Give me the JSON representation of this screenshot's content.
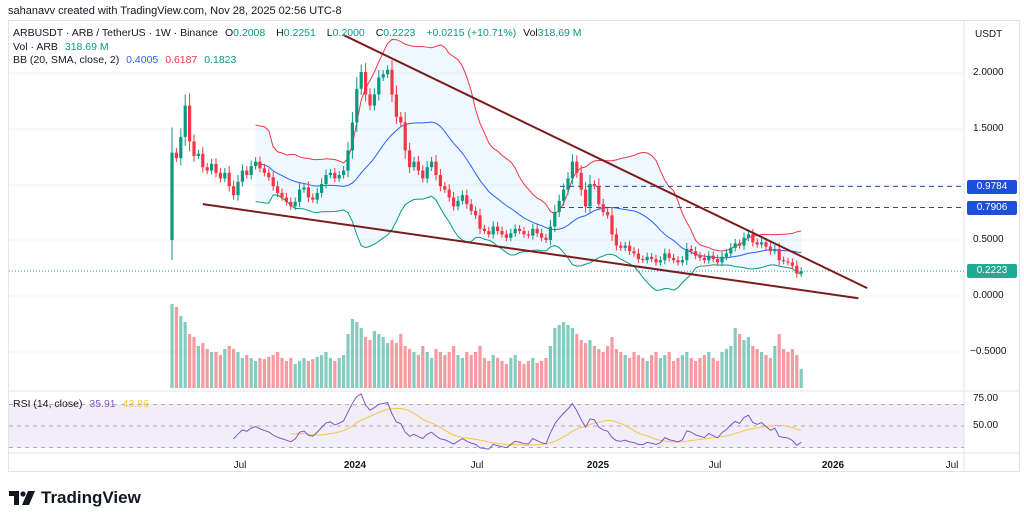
{
  "credit": "sahanavv created with TradingView.com, Nov 28, 2025 02:56 UTC-8",
  "legend": {
    "symbol": "ARBUSDT · ARB / TetherUS · 1W · Binance",
    "o_label": "O",
    "o": "0.2008",
    "h_label": "H",
    "h": "0.2251",
    "l_label": "L",
    "l": "0.2000",
    "c_label": "C",
    "c": "0.2223",
    "change": "+0.0215 (+10.71%)",
    "vol_label": "Vol",
    "vol": "318.69 M",
    "vol_title": "Vol · ARB",
    "vol_value": "318.69 M",
    "bb_title": "BB (20, SMA, close, 2)",
    "bb_basis": "0.4005",
    "bb_upper": "0.6187",
    "bb_lower": "0.1823",
    "rsi_title": "RSI (14, close)",
    "rsi_value": "35.91",
    "rsi_ma": "43.86"
  },
  "price_axis": {
    "currency": "USDT",
    "ticks": [
      "2.0000",
      "1.5000",
      "0.5000",
      "0.0000",
      "−0.5000"
    ],
    "rsi_ticks": [
      "75.00",
      "50.00"
    ]
  },
  "tags": {
    "level1": "0.9784",
    "level2": "0.7906",
    "last": "0.2223"
  },
  "time_axis": [
    "Jul",
    "2024",
    "Jul",
    "2025",
    "Jul",
    "2026",
    "Jul"
  ],
  "logo": "TradingView",
  "colors": {
    "up": "#089981",
    "down": "#f23645",
    "bb_basis": "#2962ff",
    "bb_upper": "#f23645",
    "bb_lower": "#089981",
    "trend": "#7b1c1c",
    "rsi": "#7e57c2",
    "rsi_ma": "#f7c548",
    "level": "#2a4a9e"
  },
  "chart_data": {
    "type": "candlestick",
    "symbol": "ARBUSDT",
    "interval": "1W",
    "start_week": "2023-03-20",
    "first_open": 0.5,
    "close": [
      1.28,
      1.23,
      1.42,
      1.7,
      1.38,
      1.25,
      1.27,
      1.15,
      1.12,
      1.18,
      1.1,
      1.05,
      1.1,
      0.98,
      0.9,
      1.02,
      1.12,
      1.08,
      1.16,
      1.2,
      1.14,
      1.1,
      1.06,
      0.98,
      0.92,
      0.88,
      0.84,
      0.8,
      0.84,
      0.95,
      0.97,
      0.88,
      0.86,
      0.92,
      1.0,
      1.08,
      1.1,
      1.05,
      1.08,
      1.12,
      1.3,
      1.55,
      1.85,
      2.0,
      1.8,
      1.7,
      1.8,
      1.95,
      1.98,
      2.02,
      1.8,
      1.6,
      1.55,
      1.3,
      1.15,
      1.2,
      1.12,
      1.05,
      1.15,
      1.2,
      1.08,
      0.98,
      0.95,
      0.88,
      0.8,
      0.85,
      0.9,
      0.82,
      0.76,
      0.72,
      0.6,
      0.58,
      0.55,
      0.62,
      0.58,
      0.55,
      0.52,
      0.56,
      0.6,
      0.58,
      0.55,
      0.54,
      0.6,
      0.56,
      0.52,
      0.5,
      0.62,
      0.75,
      0.85,
      0.95,
      1.05,
      1.2,
      1.1,
      0.95,
      0.8,
      1.0,
      0.98,
      0.82,
      0.75,
      0.72,
      0.55,
      0.45,
      0.43,
      0.45,
      0.4,
      0.38,
      0.33,
      0.32,
      0.35,
      0.33,
      0.3,
      0.32,
      0.38,
      0.34,
      0.32,
      0.3,
      0.32,
      0.42,
      0.4,
      0.36,
      0.34,
      0.32,
      0.36,
      0.33,
      0.3,
      0.35,
      0.38,
      0.43,
      0.47,
      0.45,
      0.52,
      0.55,
      0.48,
      0.46,
      0.48,
      0.44,
      0.4,
      0.42,
      0.32,
      0.31,
      0.3,
      0.27,
      0.2,
      0.2223
    ],
    "volume_m": [
      1400,
      1350,
      1200,
      1100,
      900,
      850,
      700,
      750,
      650,
      600,
      600,
      550,
      650,
      700,
      650,
      600,
      500,
      550,
      500,
      450,
      500,
      480,
      520,
      550,
      600,
      500,
      450,
      500,
      400,
      450,
      500,
      450,
      480,
      520,
      550,
      600,
      500,
      450,
      500,
      550,
      900,
      1150,
      1100,
      1000,
      850,
      800,
      950,
      900,
      850,
      750,
      800,
      750,
      900,
      700,
      650,
      600,
      550,
      700,
      600,
      500,
      650,
      600,
      550,
      600,
      700,
      550,
      500,
      600,
      550,
      600,
      700,
      500,
      450,
      550,
      500,
      450,
      400,
      500,
      550,
      450,
      400,
      450,
      500,
      420,
      450,
      500,
      700,
      1000,
      1050,
      1100,
      1050,
      1000,
      900,
      800,
      750,
      800,
      700,
      650,
      600,
      700,
      850,
      650,
      600,
      550,
      500,
      600,
      550,
      500,
      450,
      550,
      600,
      500,
      550,
      600,
      450,
      500,
      550,
      600,
      500,
      450,
      500,
      550,
      600,
      500,
      450,
      600,
      650,
      700,
      1000,
      900,
      800,
      850,
      700,
      650,
      600,
      550,
      500,
      700,
      900,
      650,
      600,
      650,
      550,
      318.69
    ],
    "indicators": {
      "bb": {
        "length": 20,
        "mult": 2
      },
      "rsi": {
        "length": 14,
        "ma_length": 14
      }
    },
    "trendlines": [
      {
        "name": "upper",
        "from": {
          "week": 39,
          "price": 2.33
        },
        "to": {
          "week": 158,
          "price": 0.07
        }
      },
      {
        "name": "lower",
        "from": {
          "week": 7,
          "price": 0.82
        },
        "to": {
          "week": 156,
          "price": -0.02
        }
      }
    ],
    "horizontal_levels": [
      0.9784,
      0.7906
    ],
    "last_price": 0.2223,
    "ylim": [
      -0.85,
      2.35
    ],
    "rsi_ylim": [
      20,
      85
    ]
  }
}
